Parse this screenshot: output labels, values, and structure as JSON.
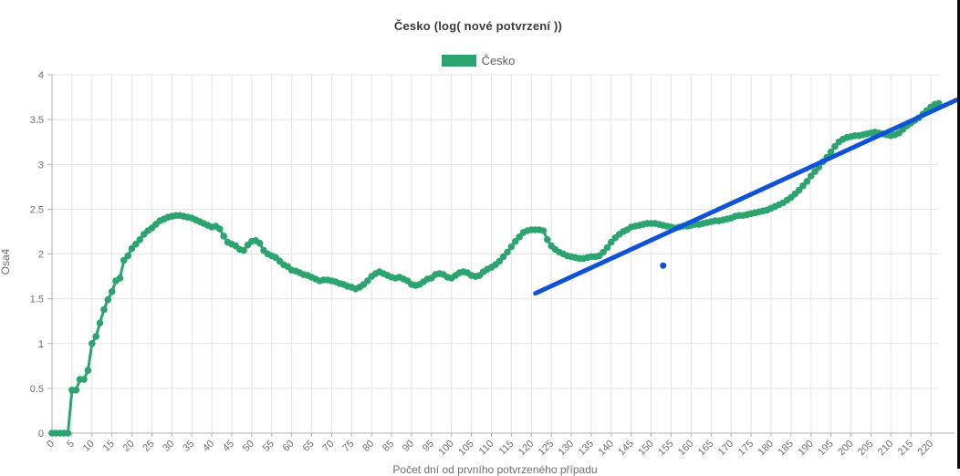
{
  "header": {
    "title": "Česko (log( nové potvrzení ))"
  },
  "legend": {
    "label": "Česko",
    "swatch_color": "#2ca46f"
  },
  "colors": {
    "series_green": "#2ca46f",
    "trend_blue": "#0e53d7",
    "grid": "#e4e4e4",
    "axis": "#b0b0b0",
    "tick_text": "#6f6f6f",
    "title_text": "#3a3a3a",
    "right_border": "#0a0a0a",
    "background": "#ffffff"
  },
  "chart_data": {
    "type": "line",
    "title": "Česko (log( nové potvrzení ))",
    "ylabel": "Osa4",
    "xlabel": "Počet dní od prvního potvrzeného případu",
    "xlabel_note": "clipped at bottom edge of screenshot",
    "ylim": [
      0,
      4
    ],
    "xlim": [
      0,
      227
    ],
    "grid": true,
    "legend_position": "top-center",
    "y_ticks": [
      0,
      0.5,
      1,
      1.5,
      2,
      2.5,
      3,
      3.5,
      4
    ],
    "x_ticks": [
      0,
      5,
      10,
      15,
      20,
      25,
      30,
      35,
      40,
      45,
      50,
      55,
      60,
      65,
      70,
      75,
      80,
      85,
      90,
      95,
      100,
      105,
      110,
      115,
      120,
      125,
      130,
      135,
      140,
      145,
      150,
      155,
      160,
      165,
      170,
      175,
      180,
      185,
      190,
      195,
      200,
      205,
      210,
      215,
      220
    ],
    "series": [
      {
        "name": "Česko",
        "style": "line-with-points",
        "color": "#2ca46f",
        "day_start": 0,
        "day_step": 1,
        "values": [
          0,
          0,
          0,
          0,
          0,
          0.48,
          0.48,
          0.6,
          0.6,
          0.7,
          1.0,
          1.08,
          1.23,
          1.38,
          1.49,
          1.58,
          1.7,
          1.73,
          1.93,
          1.98,
          2.06,
          2.11,
          2.16,
          2.22,
          2.26,
          2.29,
          2.33,
          2.37,
          2.39,
          2.41,
          2.42,
          2.43,
          2.43,
          2.42,
          2.41,
          2.4,
          2.38,
          2.36,
          2.34,
          2.32,
          2.3,
          2.31,
          2.28,
          2.2,
          2.13,
          2.11,
          2.09,
          2.05,
          2.04,
          2.1,
          2.14,
          2.15,
          2.12,
          2.04,
          2.0,
          1.98,
          1.96,
          1.92,
          1.88,
          1.86,
          1.82,
          1.81,
          1.79,
          1.77,
          1.76,
          1.74,
          1.72,
          1.7,
          1.71,
          1.71,
          1.7,
          1.69,
          1.67,
          1.66,
          1.64,
          1.63,
          1.61,
          1.63,
          1.66,
          1.7,
          1.75,
          1.78,
          1.8,
          1.78,
          1.76,
          1.74,
          1.73,
          1.74,
          1.72,
          1.7,
          1.66,
          1.65,
          1.66,
          1.69,
          1.72,
          1.73,
          1.77,
          1.78,
          1.77,
          1.74,
          1.73,
          1.76,
          1.79,
          1.8,
          1.79,
          1.76,
          1.75,
          1.76,
          1.8,
          1.83,
          1.85,
          1.88,
          1.92,
          1.97,
          2.02,
          2.08,
          2.14,
          2.19,
          2.24,
          2.26,
          2.27,
          2.27,
          2.27,
          2.26,
          2.16,
          2.09,
          2.05,
          2.02,
          2.0,
          1.98,
          1.97,
          1.96,
          1.95,
          1.95,
          1.96,
          1.97,
          1.97,
          1.98,
          2.02,
          2.07,
          2.13,
          2.18,
          2.22,
          2.25,
          2.27,
          2.3,
          2.31,
          2.32,
          2.33,
          2.34,
          2.34,
          2.34,
          2.33,
          2.32,
          2.31,
          2.3,
          2.29,
          2.3,
          2.31,
          2.31,
          2.32,
          2.33,
          2.33,
          2.34,
          2.35,
          2.36,
          2.37,
          2.37,
          2.38,
          2.39,
          2.4,
          2.42,
          2.43,
          2.43,
          2.44,
          2.45,
          2.46,
          2.47,
          2.48,
          2.49,
          2.51,
          2.53,
          2.55,
          2.57,
          2.6,
          2.63,
          2.67,
          2.71,
          2.76,
          2.81,
          2.87,
          2.92,
          2.97,
          3.03,
          3.08,
          3.14,
          3.2,
          3.25,
          3.28,
          3.3,
          3.31,
          3.32,
          3.32,
          3.33,
          3.34,
          3.35,
          3.36,
          3.35,
          3.34,
          3.33,
          3.32,
          3.33,
          3.35,
          3.39,
          3.43,
          3.46,
          3.49,
          3.52,
          3.56,
          3.6,
          3.64,
          3.67,
          3.68
        ]
      },
      {
        "name": "trend-line",
        "style": "line",
        "color": "#0e53d7",
        "points": [
          [
            121,
            1.56
          ],
          [
            226.5,
            3.72
          ]
        ]
      },
      {
        "name": "outlier-point",
        "style": "point",
        "color": "#0e53d7",
        "point": [
          153,
          1.87
        ]
      }
    ]
  }
}
